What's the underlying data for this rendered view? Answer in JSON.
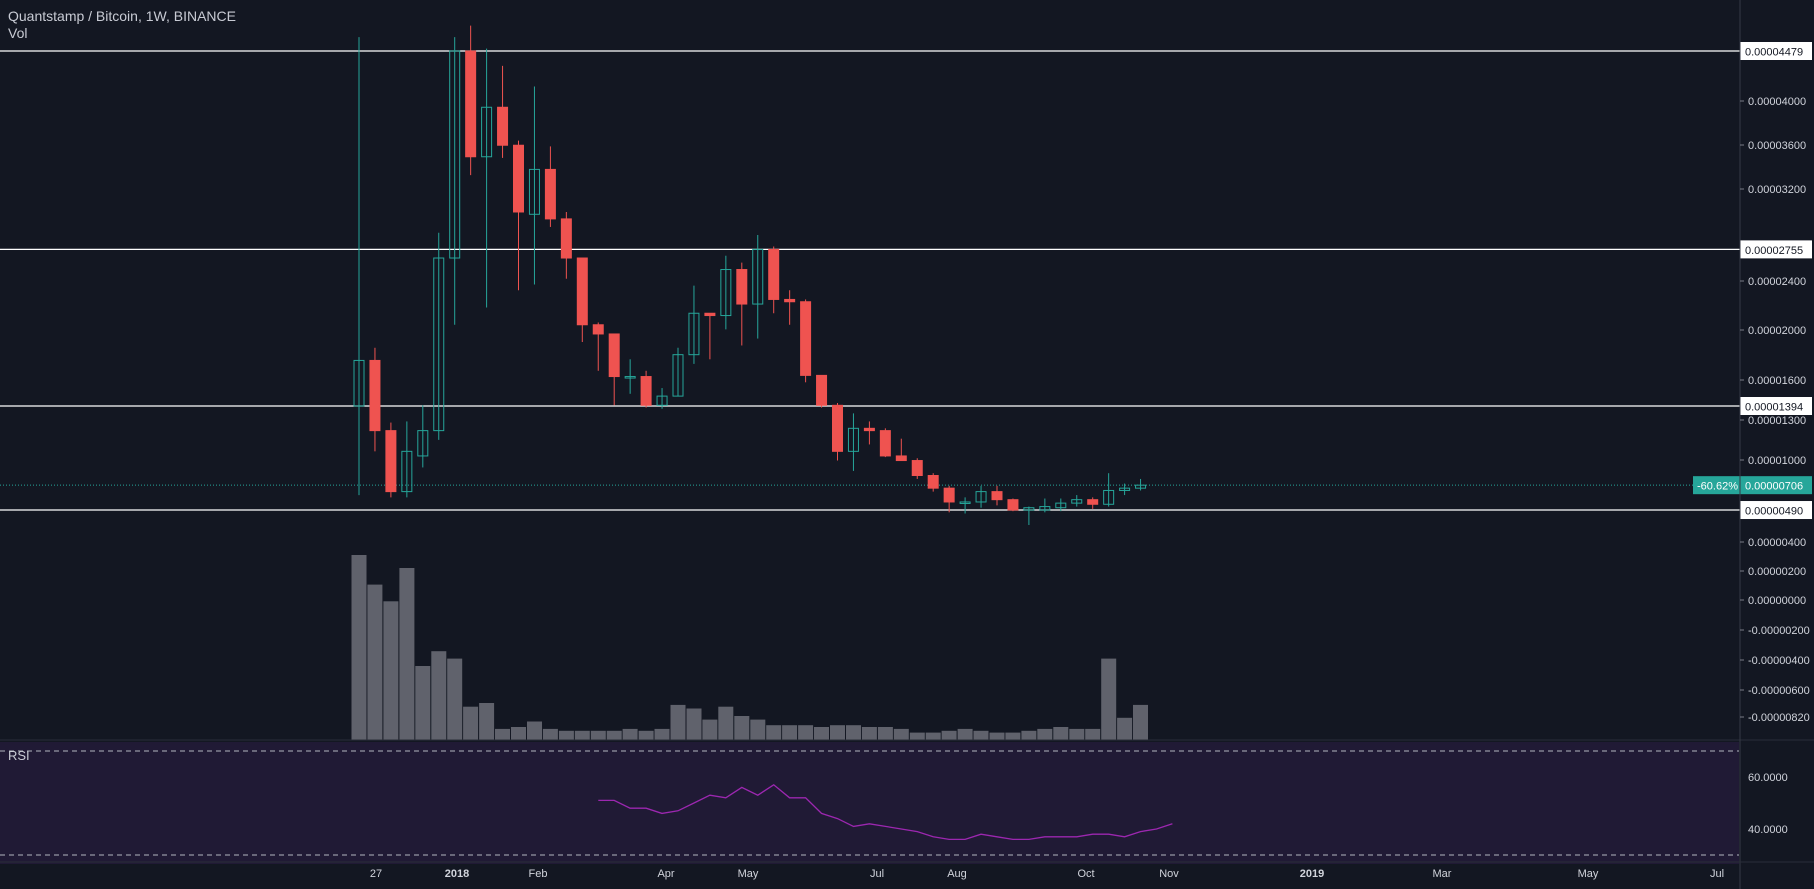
{
  "legend": {
    "title": "Quantstamp / Bitcoin, 1W, BINANCE",
    "vol": "Vol"
  },
  "rsi_pane": {
    "label": "RSI"
  },
  "colors": {
    "background": "#131722",
    "up": "#26a69a",
    "down": "#ef5350",
    "volume": "#6f7079",
    "rsi_line": "#9c27b0",
    "rsi_band": "#201a35",
    "level_line": "#ffffff"
  },
  "chart_data": [
    {
      "type": "candlestick",
      "title": "Quantstamp / Bitcoin, 1W, BINANCE",
      "y_scale": "linear",
      "grid": false,
      "y_ticks": [
        "0.00004000",
        "0.00003600",
        "0.00003200",
        "0.00002400",
        "0.00002000",
        "0.00001600",
        "0.00001300",
        "0.00001000",
        "0.00000400",
        "0.00000200",
        "0.00000000",
        "-0.00000200",
        "-0.00000400",
        "-0.00000600",
        "-0.00000820"
      ],
      "x_ticks": [
        "27",
        "2018",
        "Feb",
        "Apr",
        "May",
        "Jul",
        "Aug",
        "Oct",
        "Nov",
        "2019",
        "Mar",
        "May",
        "Jul"
      ],
      "horizontal_levels": [
        {
          "value": 4.479e-05,
          "label": "0.00004479"
        },
        {
          "value": 2.755e-05,
          "label": "0.00002755"
        },
        {
          "value": 1.394e-05,
          "label": "0.00001394"
        },
        {
          "value": 4.9e-06,
          "label": "0.00000490"
        }
      ],
      "last_price": {
        "value": 7.06e-06,
        "label": "0.00000706",
        "change": "-60.62%"
      },
      "candles": [
        {
          "o": 1.394e-05,
          "h": 4.6e-05,
          "l": 6.2e-06,
          "c": 1.79e-05
        },
        {
          "o": 1.79e-05,
          "h": 1.9e-05,
          "l": 1e-05,
          "c": 1.18e-05
        },
        {
          "o": 1.18e-05,
          "h": 1.25e-05,
          "l": 6e-06,
          "c": 6.5e-06
        },
        {
          "o": 6.5e-06,
          "h": 1.26e-05,
          "l": 6e-06,
          "c": 1e-05
        },
        {
          "o": 9.6e-06,
          "h": 1.4e-05,
          "l": 8.6e-06,
          "c": 1.18e-05
        },
        {
          "o": 1.18e-05,
          "h": 2.9e-05,
          "l": 1.1e-05,
          "c": 2.68e-05
        },
        {
          "o": 2.68e-05,
          "h": 4.6e-05,
          "l": 2.1e-05,
          "c": 4.479e-05
        },
        {
          "o": 4.479e-05,
          "h": 4.7e-05,
          "l": 3.4e-05,
          "c": 3.56e-05
        },
        {
          "o": 3.56e-05,
          "h": 4.5e-05,
          "l": 2.25e-05,
          "c": 3.99e-05
        },
        {
          "o": 3.99e-05,
          "h": 4.35e-05,
          "l": 3.55e-05,
          "c": 3.66e-05
        },
        {
          "o": 3.66e-05,
          "h": 3.7e-05,
          "l": 2.4e-05,
          "c": 3.08e-05
        },
        {
          "o": 3.06e-05,
          "h": 4.17e-05,
          "l": 2.45e-05,
          "c": 3.45e-05
        },
        {
          "o": 3.45e-05,
          "h": 3.65e-05,
          "l": 2.95e-05,
          "c": 3.02e-05
        },
        {
          "o": 3.02e-05,
          "h": 3.08e-05,
          "l": 2.5e-05,
          "c": 2.68e-05
        },
        {
          "o": 2.68e-05,
          "h": 2.68e-05,
          "l": 1.95e-05,
          "c": 2.1e-05
        },
        {
          "o": 2.1e-05,
          "h": 2.12e-05,
          "l": 1.7e-05,
          "c": 2.02e-05
        },
        {
          "o": 2.02e-05,
          "h": 2.02e-05,
          "l": 1.4e-05,
          "c": 1.65e-05
        },
        {
          "o": 1.65e-05,
          "h": 1.8e-05,
          "l": 1.5e-05,
          "c": 1.65e-05
        },
        {
          "o": 1.65e-05,
          "h": 1.7e-05,
          "l": 1.38e-05,
          "c": 1.4e-05
        },
        {
          "o": 1.4e-05,
          "h": 1.55e-05,
          "l": 1.37e-05,
          "c": 1.48e-05
        },
        {
          "o": 1.48e-05,
          "h": 1.9e-05,
          "l": 1.48e-05,
          "c": 1.84e-05
        },
        {
          "o": 1.84e-05,
          "h": 2.44e-05,
          "l": 1.76e-05,
          "c": 2.2e-05
        },
        {
          "o": 2.2e-05,
          "h": 2.2e-05,
          "l": 1.8e-05,
          "c": 2.18e-05
        },
        {
          "o": 2.18e-05,
          "h": 2.7e-05,
          "l": 2.06e-05,
          "c": 2.58e-05
        },
        {
          "o": 2.58e-05,
          "h": 2.64e-05,
          "l": 1.92e-05,
          "c": 2.28e-05
        },
        {
          "o": 2.28e-05,
          "h": 2.88e-05,
          "l": 1.98e-05,
          "c": 2.755e-05
        },
        {
          "o": 2.755e-05,
          "h": 2.78e-05,
          "l": 2.2e-05,
          "c": 2.32e-05
        },
        {
          "o": 2.32e-05,
          "h": 2.4e-05,
          "l": 2.1e-05,
          "c": 2.3e-05
        },
        {
          "o": 2.3e-05,
          "h": 2.32e-05,
          "l": 1.6e-05,
          "c": 1.66e-05
        },
        {
          "o": 1.66e-05,
          "h": 1.66e-05,
          "l": 1.38e-05,
          "c": 1.4e-05
        },
        {
          "o": 1.4e-05,
          "h": 1.42e-05,
          "l": 9.2e-06,
          "c": 1e-05
        },
        {
          "o": 1e-05,
          "h": 1.33e-05,
          "l": 8.3e-06,
          "c": 1.2e-05
        },
        {
          "o": 1.2e-05,
          "h": 1.26e-05,
          "l": 1.06e-05,
          "c": 1.18e-05
        },
        {
          "o": 1.18e-05,
          "h": 1.2e-05,
          "l": 9.5e-06,
          "c": 9.6e-06
        },
        {
          "o": 9.6e-06,
          "h": 1.11e-05,
          "l": 9.2e-06,
          "c": 9.2e-06
        },
        {
          "o": 9.2e-06,
          "h": 9.4e-06,
          "l": 7.6e-06,
          "c": 7.9e-06
        },
        {
          "o": 7.9e-06,
          "h": 8.1e-06,
          "l": 6.5e-06,
          "c": 6.8e-06
        },
        {
          "o": 6.8e-06,
          "h": 7e-06,
          "l": 4.7e-06,
          "c": 5.6e-06
        },
        {
          "o": 5.6e-06,
          "h": 6e-06,
          "l": 4.6e-06,
          "c": 5.6e-06
        },
        {
          "o": 5.6e-06,
          "h": 7e-06,
          "l": 5.1e-06,
          "c": 6.5e-06
        },
        {
          "o": 6.5e-06,
          "h": 7e-06,
          "l": 5.3e-06,
          "c": 5.8e-06
        },
        {
          "o": 5.8e-06,
          "h": 5.9e-06,
          "l": 4.8e-06,
          "c": 4.9e-06
        },
        {
          "o": 4.9e-06,
          "h": 5.2e-06,
          "l": 3.6e-06,
          "c": 5.1e-06
        },
        {
          "o": 4.9e-06,
          "h": 5.9e-06,
          "l": 4.7e-06,
          "c": 5.2e-06
        },
        {
          "o": 5.1e-06,
          "h": 5.9e-06,
          "l": 4.8e-06,
          "c": 5.5e-06
        },
        {
          "o": 5.5e-06,
          "h": 6.2e-06,
          "l": 5.2e-06,
          "c": 5.8e-06
        },
        {
          "o": 5.8e-06,
          "h": 6e-06,
          "l": 5e-06,
          "c": 5.4e-06
        },
        {
          "o": 5.4e-06,
          "h": 8.1e-06,
          "l": 5.2e-06,
          "c": 6.6e-06
        },
        {
          "o": 6.6e-06,
          "h": 7.2e-06,
          "l": 6.2e-06,
          "c": 6.8e-06
        },
        {
          "o": 6.8e-06,
          "h": 7.6e-06,
          "l": 6.6e-06,
          "c": 7.06e-06
        }
      ],
      "volume": [
        100,
        84,
        75,
        93,
        40,
        48,
        44,
        18,
        20,
        6,
        7,
        10,
        6,
        5,
        5,
        5,
        5,
        6,
        5,
        6,
        19,
        17,
        11,
        18,
        13,
        11,
        8,
        8,
        8,
        7,
        8,
        8,
        7,
        7,
        6,
        4,
        4,
        5,
        6,
        5,
        4,
        4,
        5,
        6,
        7,
        6,
        6,
        44,
        12,
        19
      ]
    },
    {
      "type": "line",
      "title": "RSI",
      "y_ticks": [
        "60.0000",
        "40.0000"
      ],
      "bands": [
        70,
        30
      ],
      "start_index": 15,
      "values": [
        51,
        51,
        48,
        48,
        46,
        47,
        50,
        53,
        52,
        56,
        53,
        57,
        52,
        52,
        46,
        44,
        41,
        42,
        41,
        40,
        39,
        37,
        36,
        36,
        38,
        37,
        36,
        36,
        37,
        37,
        37,
        38,
        38,
        37,
        39,
        40,
        42
      ]
    }
  ]
}
